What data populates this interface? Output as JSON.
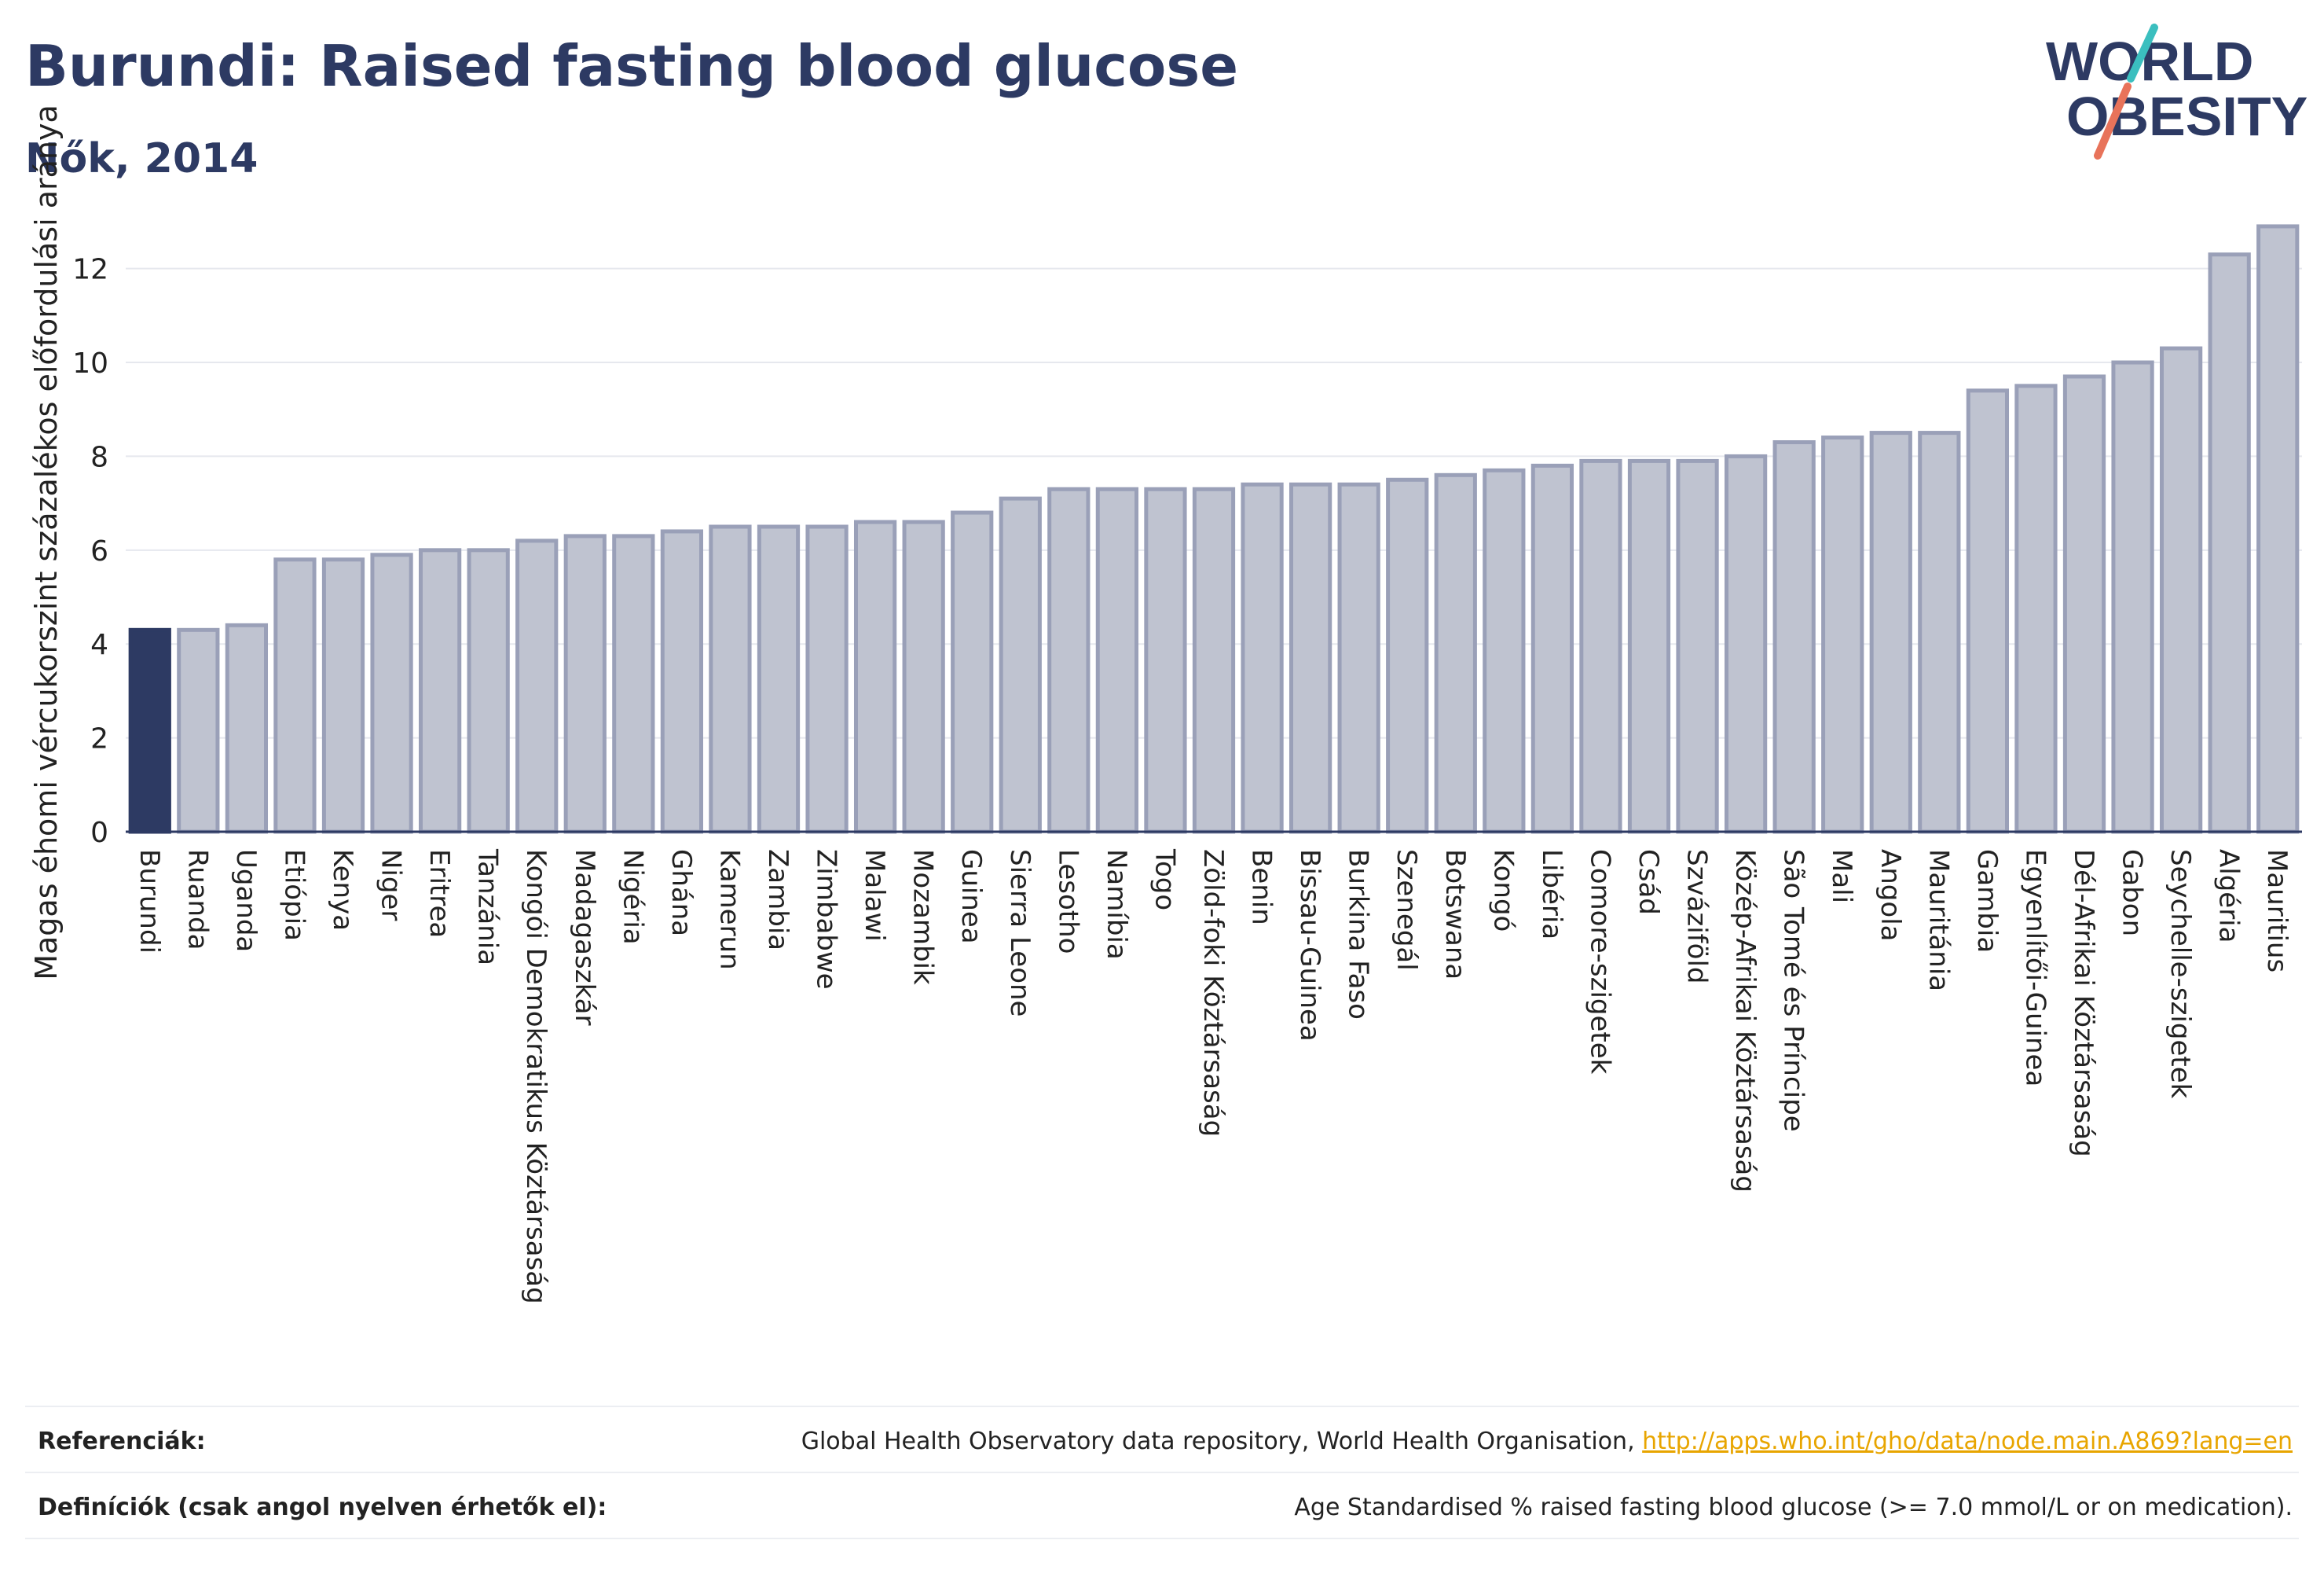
{
  "header": {
    "title": "Burundi: Raised fasting blood glucose",
    "subtitle": "Nők, 2014"
  },
  "logo": {
    "line1": "WORLD",
    "line2": "OBESITY",
    "brand_color": "#2d3a63",
    "accent_teal": "#3bbfbf",
    "accent_coral": "#e8735a"
  },
  "chart_data": {
    "type": "bar",
    "ylabel": "Magas éhomi vércukorszint százalékos előfordulási aránya",
    "xlabel": "",
    "ylim": [
      0,
      13.2
    ],
    "yticks": [
      0,
      2,
      4,
      6,
      8,
      10,
      12
    ],
    "grid": true,
    "highlight_category": "Burundi",
    "highlight_color": "#2d3a63",
    "bar_color": "#bfc3d0",
    "bar_edge_color": "#9aa0b8",
    "categories": [
      "Burundi",
      "Ruanda",
      "Uganda",
      "Etiópia",
      "Kenya",
      "Niger",
      "Eritrea",
      "Tanzánia",
      "Kongói Demokratikus Köztársaság",
      "Madagaszkár",
      "Nigéria",
      "Ghána",
      "Kamerun",
      "Zambia",
      "Zimbabwe",
      "Malawi",
      "Mozambik",
      "Guinea",
      "Sierra Leone",
      "Lesotho",
      "Namíbia",
      "Togo",
      "Zöld-foki Köztársaság",
      "Benin",
      "Bissau-Guinea",
      "Burkina Faso",
      "Szenegál",
      "Botswana",
      "Kongó",
      "Libéria",
      "Comore-szigetek",
      "Csád",
      "Szváziföld",
      "Közép-Afrikai Köztársaság",
      "São Tomé és Príncipe",
      "Mali",
      "Angola",
      "Mauritánia",
      "Gambia",
      "Egyenlítői-Guinea",
      "Dél-Afrikai Köztársaság",
      "Gabon",
      "Seychelle-szigetek",
      "Algéria",
      "Mauritius"
    ],
    "values": [
      4.3,
      4.3,
      4.4,
      5.8,
      5.8,
      5.9,
      6.0,
      6.0,
      6.2,
      6.3,
      6.3,
      6.4,
      6.5,
      6.5,
      6.5,
      6.6,
      6.6,
      6.8,
      7.1,
      7.3,
      7.3,
      7.3,
      7.3,
      7.4,
      7.4,
      7.4,
      7.5,
      7.6,
      7.7,
      7.8,
      7.9,
      7.9,
      7.9,
      8.0,
      8.3,
      8.4,
      8.5,
      8.5,
      9.4,
      9.5,
      9.7,
      10.0,
      10.3,
      12.3,
      12.9
    ]
  },
  "footer": {
    "references_label": "Referenciák:",
    "references_text": "Global Health Observatory data repository, World Health Organisation, ",
    "references_link": "http://apps.who.int/gho/data/node.main.A869?lang=en",
    "definitions_label": "Definíciók (csak angol nyelven érhetők el):",
    "definitions_text": "Age Standardised % raised fasting blood glucose (>= 7.0 mmol/L or on medication)."
  }
}
